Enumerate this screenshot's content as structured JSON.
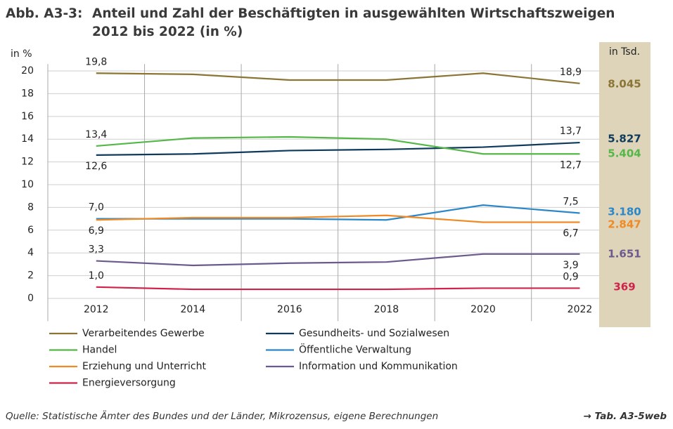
{
  "chart_data": {
    "type": "line",
    "title_prefix": "Abb. A3-3:",
    "title_lines": [
      "Anteil und Zahl der Beschäftigten in ausgewählten Wirtschaftszweigen",
      "2012 bis 2022 (in %)"
    ],
    "y_axis_label": "in %",
    "total_label": "in Tsd.",
    "x": [
      2012,
      2014,
      2016,
      2018,
      2020,
      2022
    ],
    "xlim": [
      2011,
      2022.4
    ],
    "xticks": [
      2012,
      2014,
      2016,
      2018,
      2020,
      2022
    ],
    "xgrid": [
      2013,
      2015,
      2017,
      2019,
      2021
    ],
    "ylim": [
      -2,
      20.6
    ],
    "yticks": [
      0,
      2,
      4,
      6,
      8,
      10,
      12,
      14,
      16,
      18,
      20
    ],
    "grid": true,
    "series": [
      {
        "name": "Verarbeitendes Gewerbe",
        "color": "#8a7535",
        "values": [
          19.8,
          19.7,
          19.2,
          19.2,
          19.8,
          18.9
        ],
        "value_labels": [
          "19,8",
          null,
          null,
          null,
          null,
          "18,9"
        ],
        "total": 8045,
        "total_value_label": "8.045"
      },
      {
        "name": "Gesundheits- und Sozialwesen",
        "color": "#0e3a5c",
        "values": [
          12.6,
          12.7,
          13.0,
          13.1,
          13.3,
          13.7
        ],
        "value_labels": [
          "12,6",
          null,
          null,
          null,
          null,
          "13,7"
        ],
        "total": 5827,
        "total_value_label": "5.827"
      },
      {
        "name": "Handel",
        "color": "#55b748",
        "values": [
          13.4,
          14.1,
          14.2,
          14.0,
          12.7,
          12.7
        ],
        "value_labels": [
          "13,4",
          null,
          null,
          null,
          null,
          "12,7"
        ],
        "total": 5404,
        "total_value_label": "5.404"
      },
      {
        "name": "Öffentliche Verwaltung",
        "color": "#2b87c8",
        "values": [
          7.0,
          7.0,
          7.0,
          6.9,
          8.2,
          7.5
        ],
        "value_labels": [
          "7,0",
          null,
          null,
          null,
          null,
          "7,5"
        ],
        "total": 3180,
        "total_value_label": "3.180"
      },
      {
        "name": "Erziehung und Unterricht",
        "color": "#f08a24",
        "values": [
          6.9,
          7.1,
          7.1,
          7.3,
          6.7,
          6.7
        ],
        "value_labels": [
          "6,9",
          null,
          null,
          null,
          null,
          "6,7"
        ],
        "total": 2847,
        "total_value_label": "2.847"
      },
      {
        "name": "Information und Kommunikation",
        "color": "#6c5a8e",
        "values": [
          3.3,
          2.9,
          3.1,
          3.2,
          3.9,
          3.9
        ],
        "value_labels": [
          "3,3",
          null,
          null,
          null,
          null,
          "3,9"
        ],
        "total": 1651,
        "total_value_label": "1.651"
      },
      {
        "name": "Energieversorgung",
        "color": "#d1234a",
        "values": [
          1.0,
          0.8,
          0.8,
          0.8,
          0.9,
          0.9
        ],
        "value_labels": [
          "1,0",
          null,
          null,
          null,
          null,
          "0,9"
        ],
        "total": 369,
        "total_value_label": "369"
      }
    ],
    "source": "Quelle: Statistische Ämter des Bundes und der Länder, Mikrozensus, eigene Berechnungen",
    "reference": "→ Tab. A3-5web"
  }
}
